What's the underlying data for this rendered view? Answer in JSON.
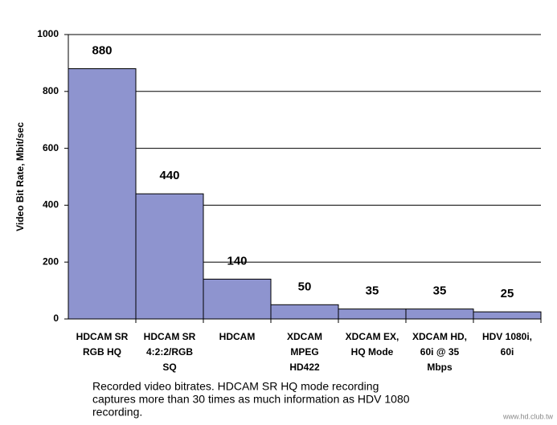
{
  "chart_data": {
    "type": "bar",
    "y_label": "Video Bit Rate, Mbit/sec",
    "categories": [
      [
        "HDCAM SR",
        "RGB HQ"
      ],
      [
        "HDCAM SR",
        "4:2:2/RGB",
        "SQ"
      ],
      [
        "HDCAM"
      ],
      [
        "XDCAM",
        "MPEG",
        "HD422"
      ],
      [
        "XDCAM EX,",
        "HQ Mode"
      ],
      [
        "XDCAM HD,",
        "60i @ 35",
        "Mbps"
      ],
      [
        "HDV 1080i,",
        "60i"
      ]
    ],
    "values": [
      880,
      440,
      140,
      50,
      35,
      35,
      25
    ],
    "color": "#8e94cf",
    "ylim": [
      0,
      1000
    ],
    "yticks": [
      0,
      200,
      400,
      600,
      800,
      1000
    ],
    "grid": true,
    "caption": [
      "Recorded video bitrates.  HDCAM SR HQ mode recording",
      "captures more than 30 times as much information as HDV 1080",
      "recording."
    ],
    "watermark": "www.hd.club.tw"
  }
}
